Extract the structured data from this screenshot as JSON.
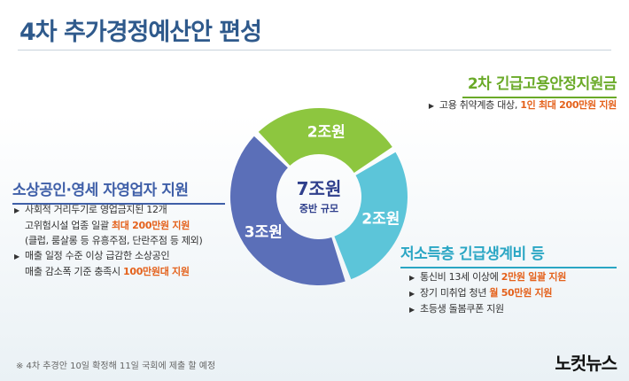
{
  "title": "4차 추가경정예산안 편성",
  "sections": {
    "green": {
      "title": "2차 긴급고용안정지원금",
      "bullets": [
        {
          "text": "고용 취약계층 대상, ",
          "highlight": "1인 최대 200만원 지원"
        }
      ]
    },
    "blue": {
      "title": "소상공인·영세 자영업자 지원",
      "lines": [
        {
          "bullet": true,
          "text": "사회적 거리두기로 영업금지된 12개",
          "highlight": ""
        },
        {
          "bullet": false,
          "text": "고위험시설 업종 일괄 ",
          "highlight": "최대 200만원 지원"
        },
        {
          "bullet": false,
          "text": "(클럽, 룸살롱 등 유흥주점, 단란주점 등 제외)",
          "highlight": ""
        },
        {
          "bullet": true,
          "text": "매출 일정 수준 이상 급감한 소상공인",
          "highlight": ""
        },
        {
          "bullet": false,
          "text": "매출 감소폭 기준 충족시 ",
          "highlight": "100만원대 지원"
        }
      ]
    },
    "cyan": {
      "title": "저소득층 긴급생계비 등",
      "lines": [
        {
          "text": "통신비 13세 이상에 ",
          "highlight": "2만원 일괄 지원"
        },
        {
          "text": "장기 미취업 청년 ",
          "highlight": "월 50만원 지원"
        },
        {
          "text": "초등생 돌봄쿠폰 지원",
          "highlight": ""
        }
      ]
    }
  },
  "chart_data": {
    "type": "pie",
    "style": "donut",
    "center_label": "7조원",
    "center_sublabel": "중반 규모",
    "slices": [
      {
        "label": "2조원",
        "value": 2,
        "color": "#8dc63f",
        "category": "2차 긴급고용안정지원금"
      },
      {
        "label": "2조원",
        "value": 2,
        "color": "#5cc5d9",
        "category": "저소득층 긴급생계비 등"
      },
      {
        "label": "3조원",
        "value": 3,
        "color": "#5b6fb8",
        "category": "소상공인·영세 자영업자 지원"
      }
    ]
  },
  "footnote": "※ 4차 추경안 10일 확정해 11일 국회에 제출 할 예정",
  "logo": "노컷뉴스"
}
